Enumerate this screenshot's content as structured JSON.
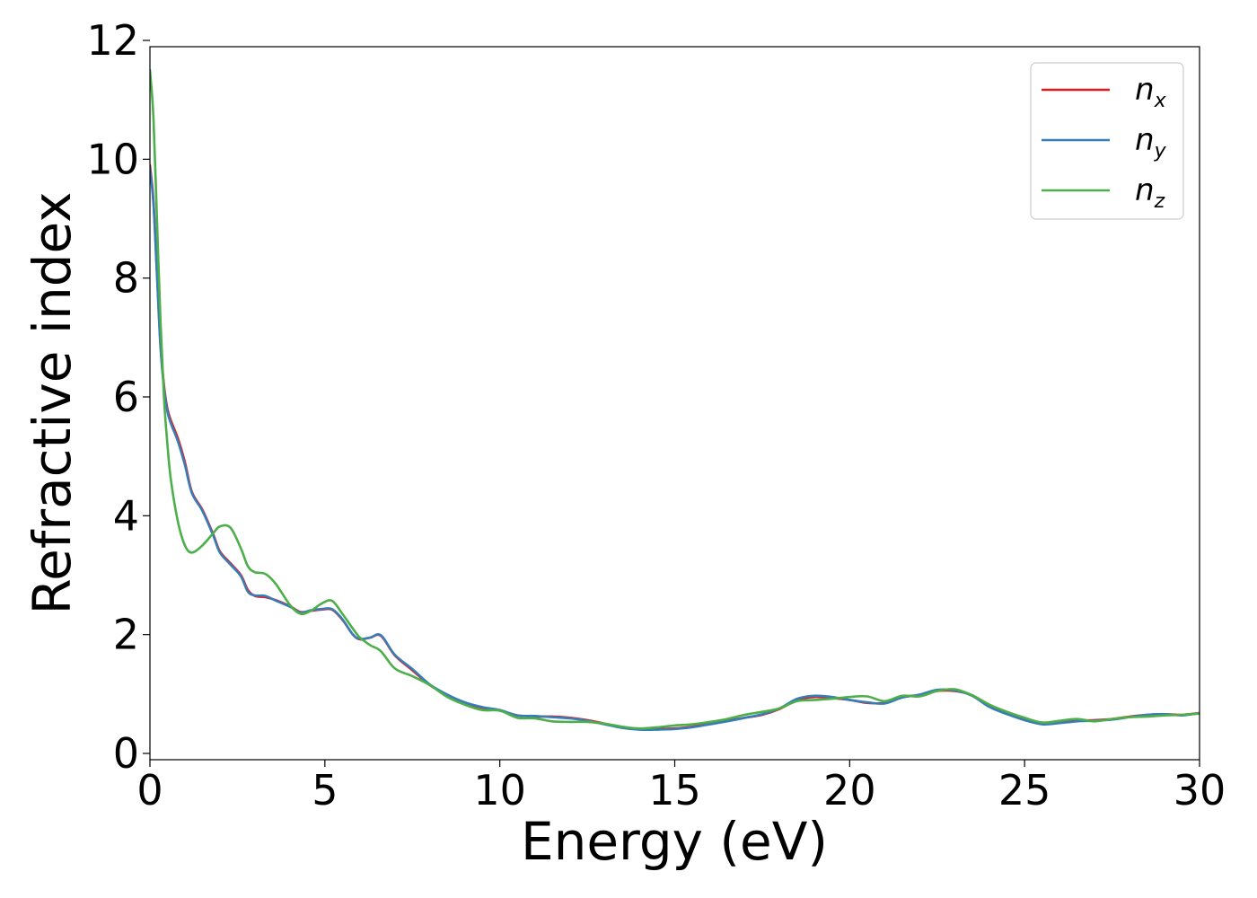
{
  "chart_data": {
    "type": "line",
    "xlabel": "Energy (eV)",
    "ylabel": "Refractive index",
    "xlim": [
      0,
      30
    ],
    "ylim": [
      0,
      12
    ],
    "xticks": [
      "0",
      "5",
      "10",
      "15",
      "20",
      "25",
      "30"
    ],
    "yticks": [
      "0",
      "2",
      "4",
      "6",
      "8",
      "10",
      "12"
    ],
    "grid": false,
    "legend_position": "top-right",
    "series": [
      {
        "name": "n",
        "subscript": "x",
        "color": "#e41a1c",
        "x": [
          0,
          0.1,
          0.2,
          0.3,
          0.4,
          0.5,
          0.6,
          0.8,
          1.0,
          1.2,
          1.5,
          1.8,
          2.0,
          2.3,
          2.6,
          2.8,
          3.0,
          3.3,
          3.6,
          4.0,
          4.3,
          4.6,
          4.9,
          5.2,
          5.5,
          5.8,
          6.0,
          6.3,
          6.6,
          7.0,
          7.5,
          8.0,
          8.5,
          9.0,
          9.5,
          10.0,
          10.5,
          11.0,
          11.5,
          12.0,
          12.5,
          13.0,
          13.5,
          14.0,
          14.5,
          15.0,
          15.5,
          16.0,
          16.5,
          17.0,
          17.5,
          18.0,
          18.5,
          19.0,
          19.5,
          20.0,
          20.5,
          21.0,
          21.5,
          22.0,
          22.5,
          23.0,
          23.5,
          24.0,
          24.5,
          25.0,
          25.5,
          26.0,
          26.5,
          27.0,
          27.5,
          28.0,
          28.5,
          29.0,
          29.5,
          30.0
        ],
        "values": [
          9.9,
          9.3,
          8.1,
          6.9,
          6.2,
          5.8,
          5.6,
          5.3,
          4.9,
          4.4,
          4.1,
          3.7,
          3.4,
          3.2,
          3.0,
          2.75,
          2.65,
          2.63,
          2.58,
          2.48,
          2.38,
          2.4,
          2.42,
          2.42,
          2.25,
          2.0,
          1.92,
          1.95,
          1.98,
          1.65,
          1.4,
          1.15,
          0.98,
          0.85,
          0.77,
          0.72,
          0.64,
          0.62,
          0.62,
          0.6,
          0.56,
          0.5,
          0.44,
          0.41,
          0.41,
          0.42,
          0.45,
          0.5,
          0.55,
          0.6,
          0.65,
          0.75,
          0.9,
          0.95,
          0.93,
          0.9,
          0.85,
          0.85,
          0.95,
          0.98,
          1.05,
          1.05,
          0.98,
          0.8,
          0.68,
          0.58,
          0.5,
          0.52,
          0.55,
          0.56,
          0.58,
          0.62,
          0.65,
          0.66,
          0.65,
          0.68
        ]
      },
      {
        "name": "n",
        "subscript": "y",
        "color": "#377eb8",
        "x": [
          0,
          0.1,
          0.2,
          0.3,
          0.4,
          0.5,
          0.6,
          0.8,
          1.0,
          1.2,
          1.5,
          1.8,
          2.0,
          2.3,
          2.6,
          2.8,
          3.0,
          3.3,
          3.6,
          4.0,
          4.3,
          4.6,
          4.9,
          5.2,
          5.5,
          5.8,
          6.0,
          6.3,
          6.6,
          7.0,
          7.5,
          8.0,
          8.5,
          9.0,
          9.5,
          10.0,
          10.5,
          11.0,
          11.5,
          12.0,
          12.5,
          13.0,
          13.5,
          14.0,
          14.5,
          15.0,
          15.5,
          16.0,
          16.5,
          17.0,
          17.5,
          18.0,
          18.5,
          19.0,
          19.5,
          20.0,
          20.5,
          21.0,
          21.5,
          22.0,
          22.5,
          23.0,
          23.5,
          24.0,
          24.5,
          25.0,
          25.5,
          26.0,
          26.5,
          27.0,
          27.5,
          28.0,
          28.5,
          29.0,
          29.5,
          30.0
        ],
        "values": [
          9.85,
          9.25,
          8.05,
          6.85,
          6.15,
          5.75,
          5.55,
          5.25,
          4.85,
          4.38,
          4.08,
          3.68,
          3.38,
          3.18,
          2.98,
          2.72,
          2.66,
          2.65,
          2.57,
          2.47,
          2.37,
          2.41,
          2.43,
          2.43,
          2.26,
          2.0,
          1.93,
          1.95,
          1.99,
          1.66,
          1.42,
          1.16,
          0.99,
          0.86,
          0.78,
          0.73,
          0.64,
          0.63,
          0.61,
          0.59,
          0.55,
          0.49,
          0.43,
          0.4,
          0.4,
          0.41,
          0.44,
          0.49,
          0.54,
          0.6,
          0.66,
          0.76,
          0.92,
          0.97,
          0.95,
          0.9,
          0.86,
          0.84,
          0.94,
          0.99,
          1.07,
          1.06,
          0.97,
          0.78,
          0.66,
          0.56,
          0.49,
          0.51,
          0.54,
          0.55,
          0.57,
          0.61,
          0.65,
          0.66,
          0.64,
          0.68
        ]
      },
      {
        "name": "n",
        "subscript": "z",
        "color": "#4daf4a",
        "x": [
          0,
          0.1,
          0.2,
          0.3,
          0.4,
          0.5,
          0.6,
          0.8,
          1.0,
          1.2,
          1.5,
          1.8,
          2.0,
          2.3,
          2.6,
          2.8,
          3.0,
          3.3,
          3.6,
          4.0,
          4.3,
          4.6,
          4.9,
          5.2,
          5.5,
          5.8,
          6.0,
          6.3,
          6.6,
          7.0,
          7.5,
          8.0,
          8.5,
          9.0,
          9.5,
          10.0,
          10.5,
          11.0,
          11.5,
          12.0,
          12.5,
          13.0,
          13.5,
          14.0,
          14.5,
          15.0,
          15.5,
          16.0,
          16.5,
          17.0,
          17.5,
          18.0,
          18.5,
          19.0,
          19.5,
          20.0,
          20.5,
          21.0,
          21.5,
          22.0,
          22.5,
          23.0,
          23.5,
          24.0,
          24.5,
          25.0,
          25.5,
          26.0,
          26.5,
          27.0,
          27.5,
          28.0,
          28.5,
          29.0,
          29.5,
          30.0
        ],
        "values": [
          11.5,
          10.7,
          9.0,
          7.3,
          6.0,
          5.2,
          4.6,
          3.9,
          3.5,
          3.38,
          3.5,
          3.7,
          3.82,
          3.8,
          3.45,
          3.15,
          3.05,
          3.02,
          2.85,
          2.5,
          2.35,
          2.4,
          2.52,
          2.57,
          2.35,
          2.1,
          1.95,
          1.82,
          1.72,
          1.43,
          1.3,
          1.15,
          0.95,
          0.82,
          0.73,
          0.72,
          0.6,
          0.59,
          0.54,
          0.53,
          0.53,
          0.5,
          0.45,
          0.42,
          0.44,
          0.47,
          0.49,
          0.53,
          0.58,
          0.65,
          0.7,
          0.76,
          0.88,
          0.9,
          0.92,
          0.95,
          0.96,
          0.88,
          0.97,
          0.96,
          1.05,
          1.08,
          0.98,
          0.82,
          0.7,
          0.6,
          0.52,
          0.55,
          0.58,
          0.54,
          0.58,
          0.61,
          0.62,
          0.64,
          0.65,
          0.67
        ]
      }
    ]
  }
}
